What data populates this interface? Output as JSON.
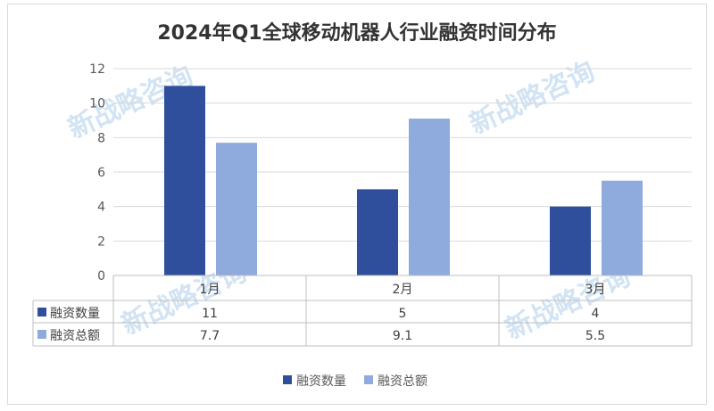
{
  "chart_data": {
    "type": "bar",
    "title": "2024年Q1全球移动机器人行业融资时间分布",
    "categories": [
      "1月",
      "2月",
      "3月"
    ],
    "series": [
      {
        "name": "融资数量",
        "values": [
          11,
          5,
          4
        ],
        "color": "#2F4F9C"
      },
      {
        "name": "融资总额",
        "values": [
          7.7,
          9.1,
          5.5
        ],
        "color": "#8FAADC"
      }
    ],
    "yticks": [
      "0",
      "2",
      "4",
      "6",
      "8",
      "10",
      "12"
    ],
    "ylim": [
      0,
      12
    ],
    "grid": true,
    "data_table": true,
    "legend": "bottom"
  },
  "watermark": "新战略咨询"
}
